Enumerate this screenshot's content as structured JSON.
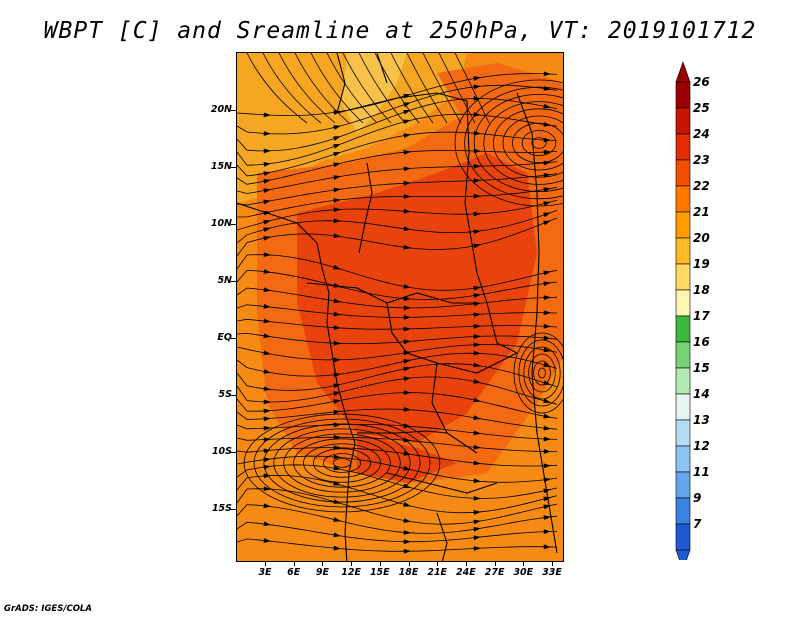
{
  "title": "WBPT [C] and Sreamline at 250hPa, VT: 2019101712",
  "credit": "GrADS: IGES/COLA",
  "lat_labels": [
    "20N",
    "15N",
    "10N",
    "5N",
    "EQ",
    "5S",
    "10S",
    "15S"
  ],
  "lon_labels": [
    "3E",
    "6E",
    "9E",
    "12E",
    "15E",
    "18E",
    "21E",
    "24E",
    "27E",
    "30E",
    "33E"
  ],
  "colorbar": {
    "labels": [
      "26",
      "25",
      "24",
      "23",
      "22",
      "21",
      "20",
      "19",
      "18",
      "17",
      "16",
      "15",
      "14",
      "13",
      "12",
      "11",
      "9",
      "7"
    ],
    "colors": [
      "#9b0000",
      "#c81400",
      "#e12d00",
      "#f25000",
      "#ff7800",
      "#ff9c00",
      "#ffb928",
      "#ffd964",
      "#fff5b4",
      "#3cb93c",
      "#78d278",
      "#b4ebb4",
      "#e6f5f0",
      "#b4dcf5",
      "#8cc3f0",
      "#64a5eb",
      "#3c82e1",
      "#1e5ad2"
    ]
  },
  "palette": {
    "warm_dark": "#e8430c",
    "warm_mid": "#f46a12",
    "warm_orange": "#f58a14",
    "warm_gold": "#f5a623",
    "warm_light": "#f8c14a"
  }
}
